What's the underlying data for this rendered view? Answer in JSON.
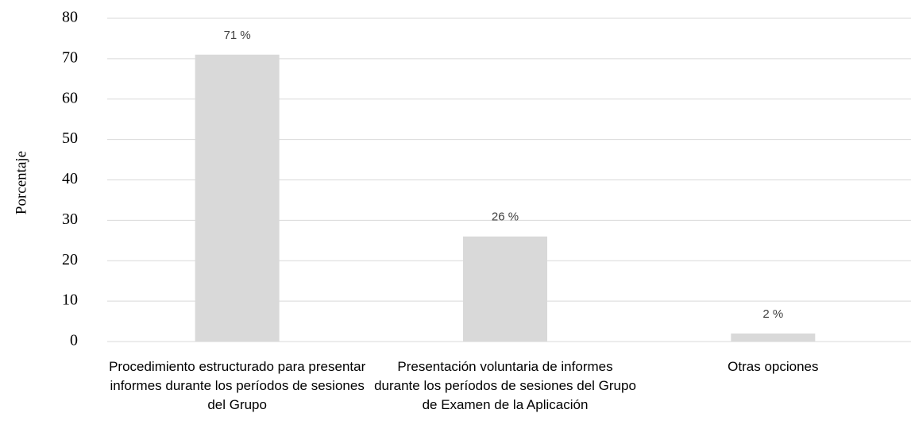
{
  "chart_data": {
    "type": "bar",
    "y_label": "Porcentaje",
    "categories": [
      "Procedimiento estructurado para presentar informes durante los períodos de sesiones del Grupo",
      "Presentación voluntaria de informes durante los períodos de sesiones del Grupo de Examen de la Aplicación",
      "Otras opciones"
    ],
    "values": [
      71,
      26,
      2
    ],
    "value_labels": [
      "71 %",
      "26 %",
      "2 %"
    ],
    "color": "#d9d9d9",
    "ylim": [
      0,
      80
    ],
    "yticks": [
      0,
      10,
      20,
      30,
      40,
      50,
      60,
      70,
      80
    ],
    "grid": true
  }
}
